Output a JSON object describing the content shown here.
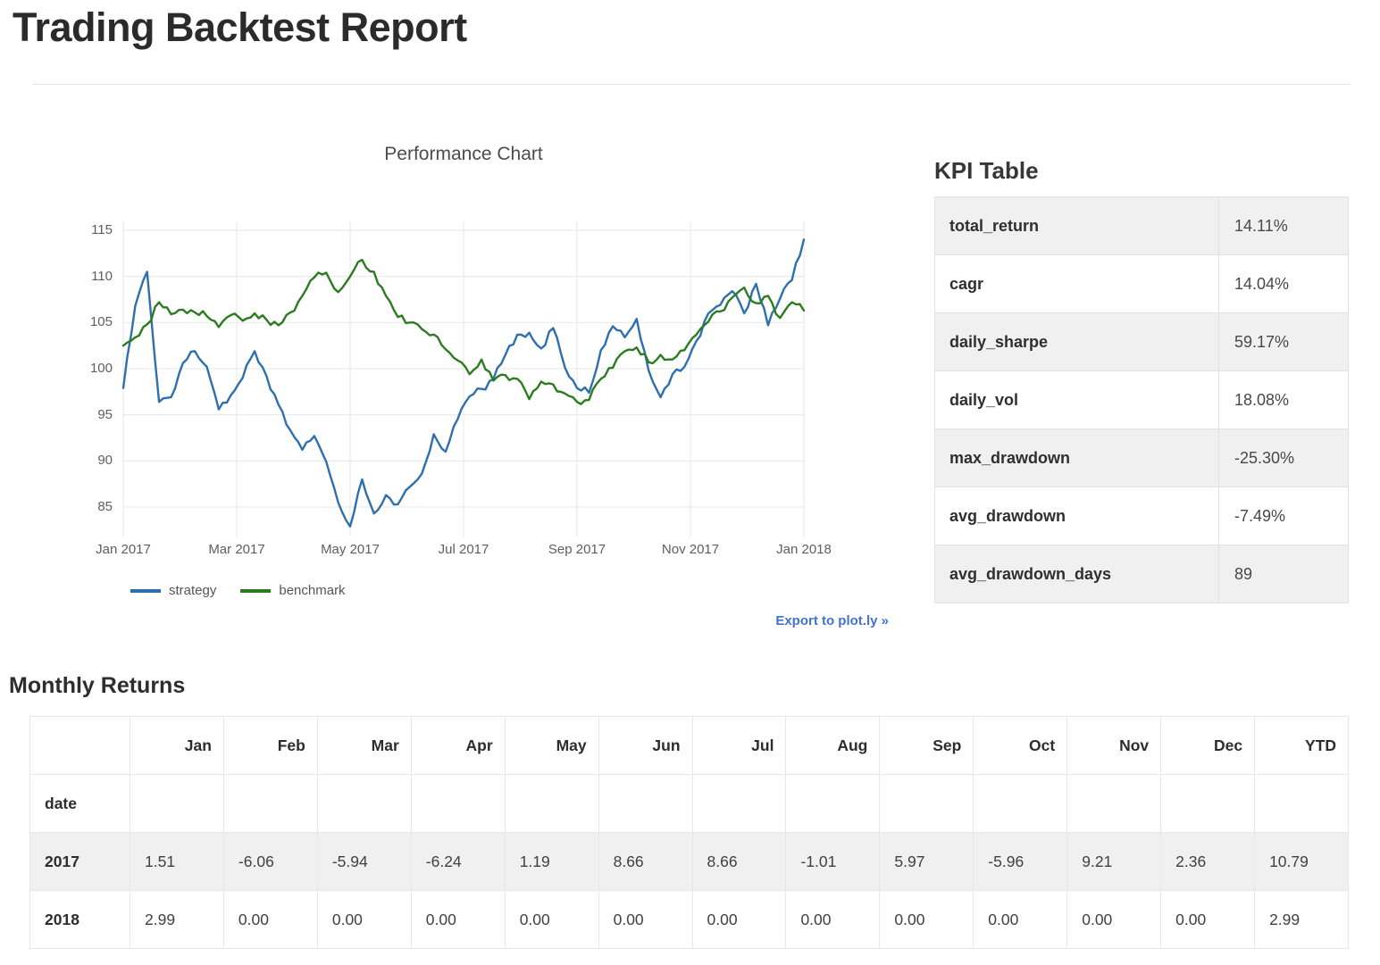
{
  "page": {
    "title": "Trading Backtest Report"
  },
  "performance": {
    "title": "Performance Chart",
    "legend": [
      {
        "label": "strategy",
        "color": "#2e6fad"
      },
      {
        "label": "benchmark",
        "color": "#2b7b1f"
      }
    ],
    "export_link": "Export to plot.ly »"
  },
  "kpi": {
    "title": "KPI Table",
    "rows": [
      {
        "label": "total_return",
        "value": "14.11%"
      },
      {
        "label": "cagr",
        "value": "14.04%"
      },
      {
        "label": "daily_sharpe",
        "value": "59.17%"
      },
      {
        "label": "daily_vol",
        "value": "18.08%"
      },
      {
        "label": "max_drawdown",
        "value": "-25.30%"
      },
      {
        "label": "avg_drawdown",
        "value": "-7.49%"
      },
      {
        "label": "avg_drawdown_days",
        "value": "89"
      }
    ]
  },
  "monthly": {
    "title": "Monthly Returns",
    "columns": [
      "",
      "Jan",
      "Feb",
      "Mar",
      "Apr",
      "May",
      "Jun",
      "Jul",
      "Aug",
      "Sep",
      "Oct",
      "Nov",
      "Dec",
      "YTD"
    ],
    "index_label": "date",
    "rows": [
      {
        "year": "2017",
        "values": [
          "1.51",
          "-6.06",
          "-5.94",
          "-6.24",
          "1.19",
          "8.66",
          "8.66",
          "-1.01",
          "5.97",
          "-5.96",
          "9.21",
          "2.36",
          "10.79"
        ]
      },
      {
        "year": "2018",
        "values": [
          "2.99",
          "0.00",
          "0.00",
          "0.00",
          "0.00",
          "0.00",
          "0.00",
          "0.00",
          "0.00",
          "0.00",
          "0.00",
          "0.00",
          "2.99"
        ]
      }
    ]
  },
  "chart_data": {
    "type": "line",
    "title": "Performance Chart",
    "x_tick_labels": [
      "Jan 2017",
      "Mar 2017",
      "May 2017",
      "Jul 2017",
      "Sep 2017",
      "Nov 2017",
      "Jan 2018"
    ],
    "y_ticks": [
      85,
      90,
      95,
      100,
      105,
      110,
      115
    ],
    "ylim": [
      82,
      116
    ],
    "x_unit": "weekly samples, Jan 2017 through early Jan 2018",
    "grid": true,
    "legend_position": "bottom-left",
    "series": [
      {
        "name": "strategy",
        "color": "#2e6fad",
        "values": [
          97.9,
          106.8,
          110.5,
          96.4,
          96.9,
          100.6,
          101.9,
          100.2,
          95.6,
          97.1,
          99.0,
          101.9,
          99.2,
          96.1,
          93.3,
          91.2,
          92.7,
          89.9,
          85.5,
          82.9,
          88.0,
          84.3,
          86.3,
          85.3,
          87.2,
          88.6,
          92.9,
          91.0,
          94.5,
          97.0,
          97.8,
          98.9,
          101.5,
          103.7,
          103.9,
          102.2,
          104.4,
          100.1,
          97.9,
          97.4,
          102.0,
          104.6,
          103.4,
          105.4,
          99.8,
          96.9,
          99.4,
          100.2,
          103.0,
          106.0,
          106.9,
          108.4,
          106.0,
          109.2,
          104.7,
          107.6,
          109.6,
          114.0
        ]
      },
      {
        "name": "benchmark",
        "color": "#2b7b1f",
        "values": [
          102.5,
          103.4,
          104.8,
          107.2,
          105.9,
          106.4,
          106.1,
          105.7,
          104.5,
          105.8,
          105.2,
          106.0,
          105.3,
          104.7,
          106.1,
          107.9,
          109.9,
          110.4,
          108.3,
          110.0,
          111.8,
          110.5,
          107.9,
          105.6,
          105.0,
          104.3,
          103.7,
          102.1,
          100.9,
          99.4,
          101.0,
          98.7,
          99.3,
          98.9,
          96.7,
          98.6,
          98.3,
          97.3,
          96.4,
          96.6,
          98.9,
          100.1,
          101.9,
          102.3,
          100.7,
          101.5,
          101.0,
          102.0,
          103.7,
          105.1,
          106.2,
          107.7,
          108.8,
          107.1,
          107.9,
          105.5,
          107.2,
          106.3
        ]
      }
    ]
  }
}
